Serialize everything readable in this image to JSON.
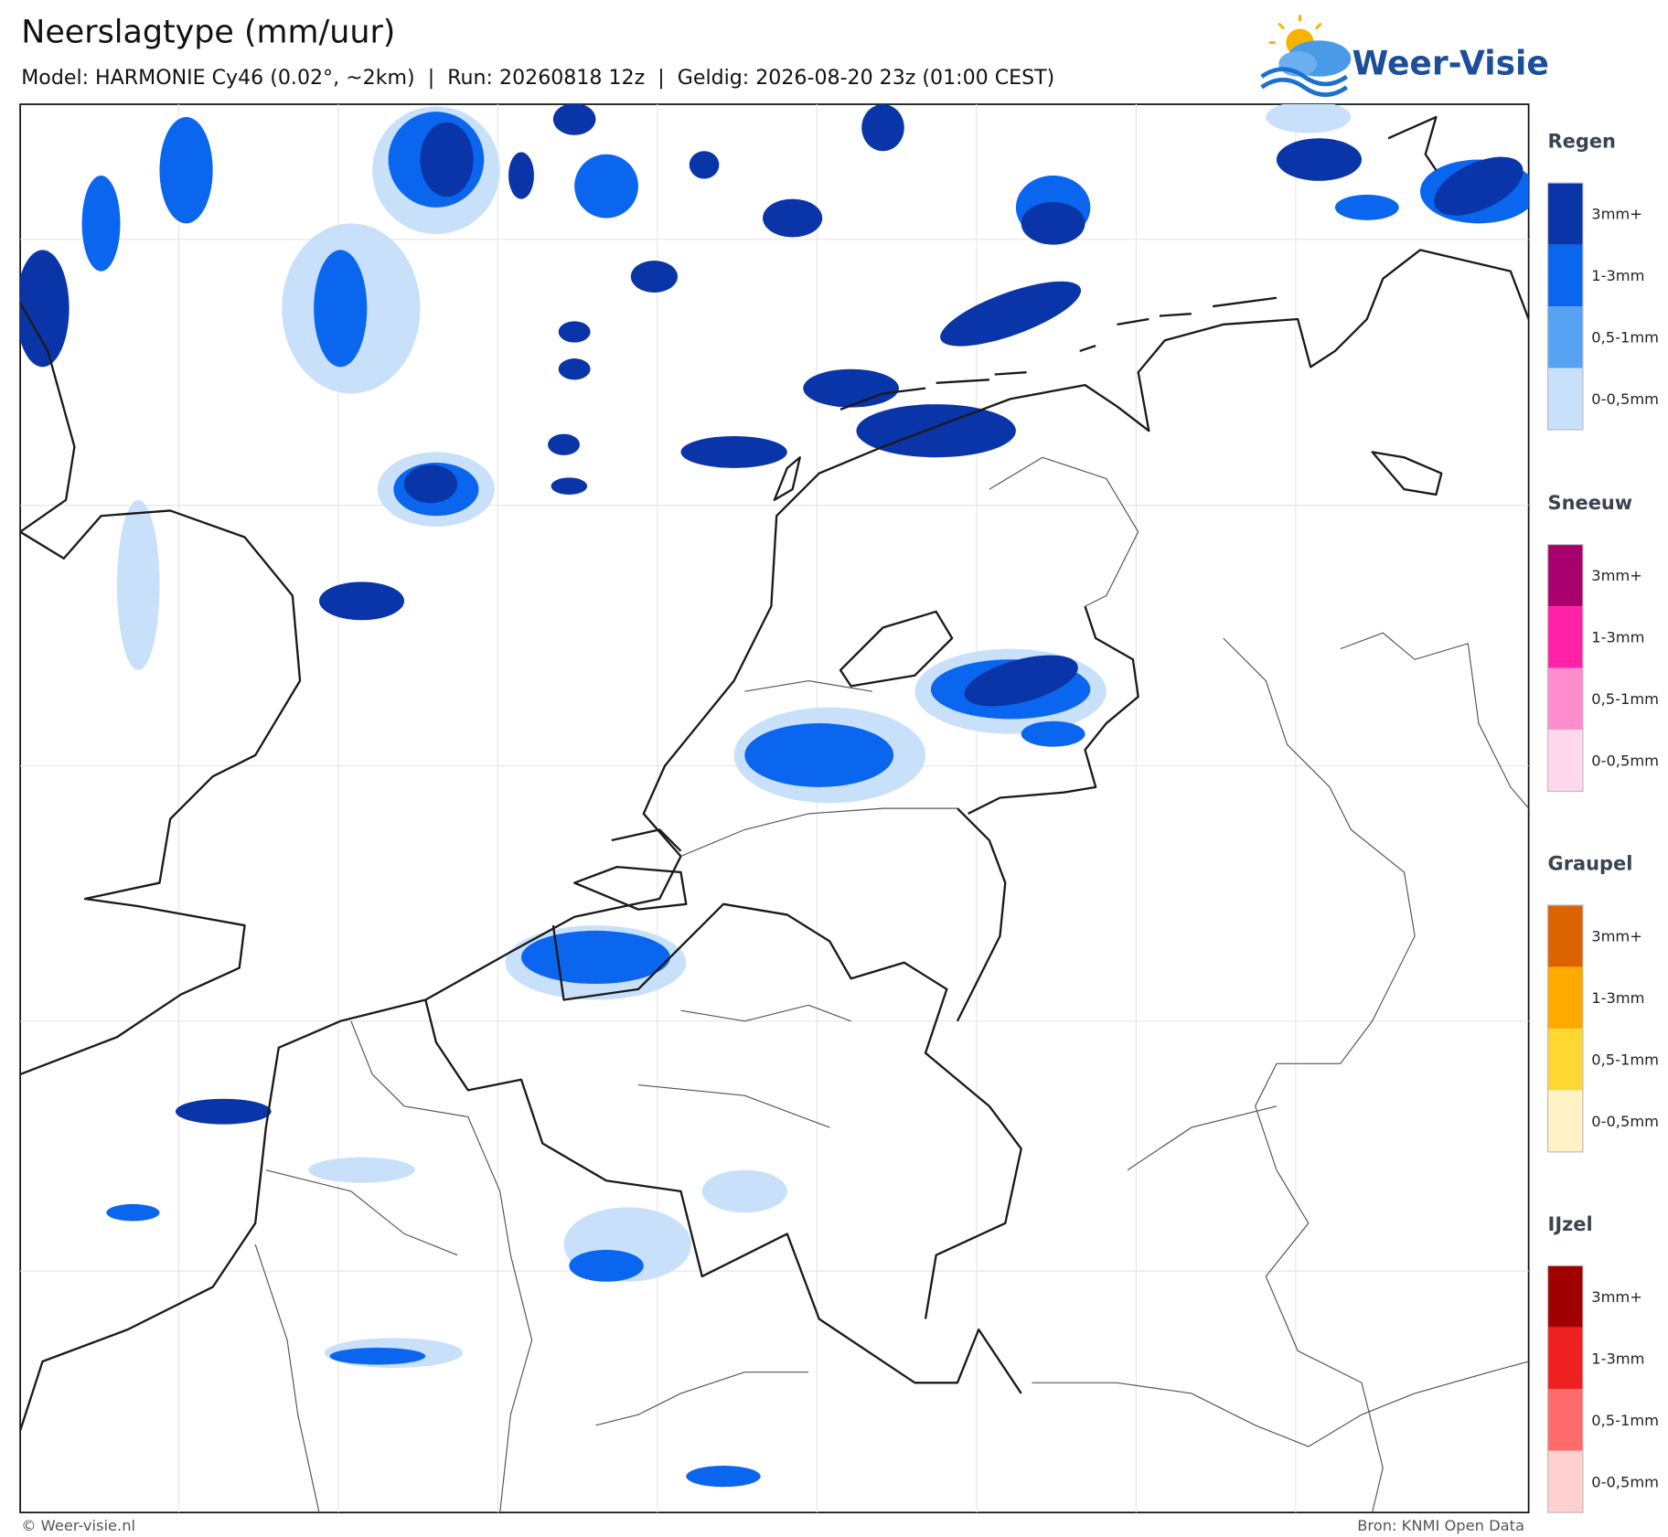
{
  "header": {
    "title": "Neerslagtype (mm/uur)",
    "subtitle": "Model: HARMONIE Cy46 (0.02°, ~2km)  |  Run: 20260818 12z  |  Geldig: 2026-08-20 23z (01:00 CEST)"
  },
  "logo": {
    "text": "Weer-Visie"
  },
  "legend": [
    {
      "title": "Regen",
      "items": [
        {
          "label": "3mm+",
          "color": "#0a35a8"
        },
        {
          "label": "1-3mm",
          "color": "#0a66ee"
        },
        {
          "label": "0,5-1mm",
          "color": "#58a2f4"
        },
        {
          "label": "0-0,5mm",
          "color": "#c8e0fa"
        }
      ]
    },
    {
      "title": "Sneeuw",
      "items": [
        {
          "label": "3mm+",
          "color": "#a8006e"
        },
        {
          "label": "1-3mm",
          "color": "#ff22a6"
        },
        {
          "label": "0,5-1mm",
          "color": "#ff8ccc"
        },
        {
          "label": "0-0,5mm",
          "color": "#ffd8ee"
        }
      ]
    },
    {
      "title": "Graupel",
      "items": [
        {
          "label": "3mm+",
          "color": "#dc6400"
        },
        {
          "label": "1-3mm",
          "color": "#ffaa00"
        },
        {
          "label": "0,5-1mm",
          "color": "#ffd733"
        },
        {
          "label": "0-0,5mm",
          "color": "#fff2c6"
        }
      ]
    },
    {
      "title": "IJzel",
      "items": [
        {
          "label": "3mm+",
          "color": "#a00000"
        },
        {
          "label": "1-3mm",
          "color": "#ee2020"
        },
        {
          "label": "0,5-1mm",
          "color": "#ff6a6a"
        },
        {
          "label": "0-0,5mm",
          "color": "#ffd0d0"
        }
      ]
    }
  ],
  "footer": {
    "left": "© Weer-visie.nl",
    "right": "Bron: KNMI Open Data"
  }
}
